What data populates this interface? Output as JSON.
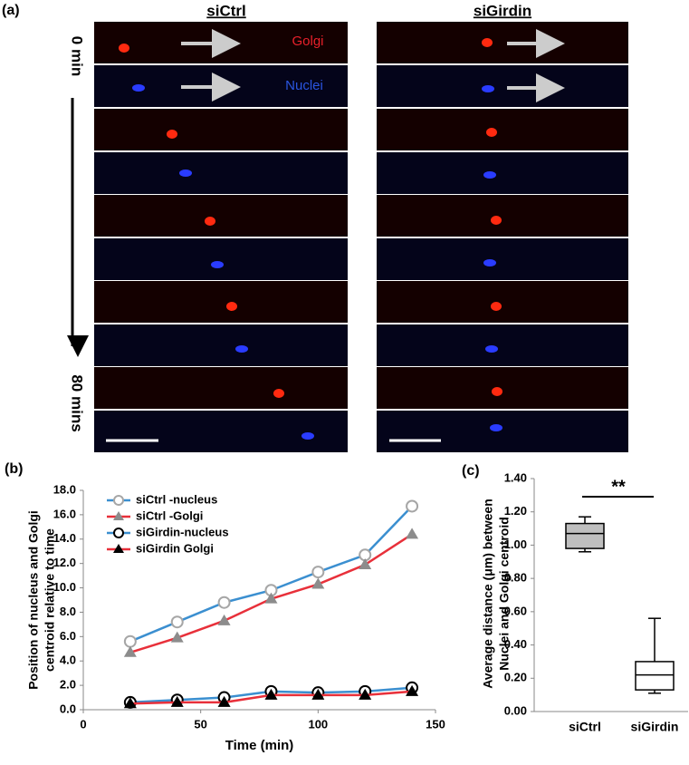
{
  "panel_a": {
    "label": "(a)",
    "columns": [
      "siCtrl",
      "siGirdin"
    ],
    "channels": [
      "Golgi",
      "Nuclei"
    ],
    "time_start": "0 min",
    "time_end": "80 mins"
  },
  "chart_data": [
    {
      "type": "line",
      "panel_label": "(b)",
      "xlabel": "Time (min)",
      "ylabel": [
        "Position  of nucleus and Golgi",
        "centroid relative to time"
      ],
      "x": [
        20,
        40,
        60,
        80,
        100,
        120,
        140
      ],
      "xlim": [
        0,
        150
      ],
      "xticks": [
        0,
        50,
        100,
        150
      ],
      "ylim": [
        0,
        18
      ],
      "yticks": [
        {
          "value": 0,
          "label": "0.0"
        },
        {
          "value": 2,
          "label": "2.0"
        },
        {
          "value": 4,
          "label": "4.0"
        },
        {
          "value": 6,
          "label": "6.0"
        },
        {
          "value": 8,
          "label": "8.0"
        },
        {
          "value": 10,
          "label": "10.0"
        },
        {
          "value": 12,
          "label": "12.0"
        },
        {
          "value": 14,
          "label": "14.0"
        },
        {
          "value": 16,
          "label": "16.0"
        },
        {
          "value": 18,
          "label": "18.0"
        }
      ],
      "series": [
        {
          "name": "siCtrl -nucleus",
          "color": "#3b8fd0",
          "marker": "circle-open",
          "marker_color": "#a6a6a6",
          "values": [
            5.6,
            7.2,
            8.8,
            9.8,
            11.3,
            12.7,
            16.7
          ]
        },
        {
          "name": "siCtrl -Golgi",
          "color": "#e8303a",
          "marker": "triangle",
          "marker_color": "#8c8c8c",
          "values": [
            4.7,
            5.9,
            7.3,
            9.1,
            10.3,
            11.9,
            14.4
          ]
        },
        {
          "name": "siGirdin-nucleus",
          "color": "#3b8fd0",
          "marker": "circle-open",
          "marker_color": "#000000",
          "values": [
            0.6,
            0.8,
            1.0,
            1.5,
            1.4,
            1.5,
            1.8
          ]
        },
        {
          "name": "siGirdin Golgi",
          "color": "#e8303a",
          "marker": "triangle",
          "marker_color": "#000000",
          "values": [
            0.5,
            0.6,
            0.6,
            1.2,
            1.2,
            1.2,
            1.5
          ]
        }
      ]
    },
    {
      "type": "box",
      "panel_label": "(c)",
      "ylabel": [
        "Average distance (μm) between",
        "Nuclei and Golgi centroid"
      ],
      "categories": [
        "siCtrl",
        "siGirdin"
      ],
      "boxes": [
        {
          "min": 0.96,
          "q1": 0.98,
          "median": 1.07,
          "q3": 1.13,
          "max": 1.17,
          "color": "#bfbfbf"
        },
        {
          "min": 0.11,
          "q1": 0.13,
          "median": 0.22,
          "q3": 0.3,
          "max": 0.56,
          "color": "#ffffff"
        }
      ],
      "ylim": [
        0,
        1.4
      ],
      "yticks": [
        {
          "value": 0,
          "label": "0.00"
        },
        {
          "value": 0.2,
          "label": "0.20"
        },
        {
          "value": 0.4,
          "label": "0.40"
        },
        {
          "value": 0.6,
          "label": "0.60"
        },
        {
          "value": 0.8,
          "label": "0.80"
        },
        {
          "value": 1,
          "label": "1.00"
        },
        {
          "value": 1.2,
          "label": "1.20"
        },
        {
          "value": 1.4,
          "label": "1.40"
        }
      ],
      "annotation": "**"
    }
  ]
}
